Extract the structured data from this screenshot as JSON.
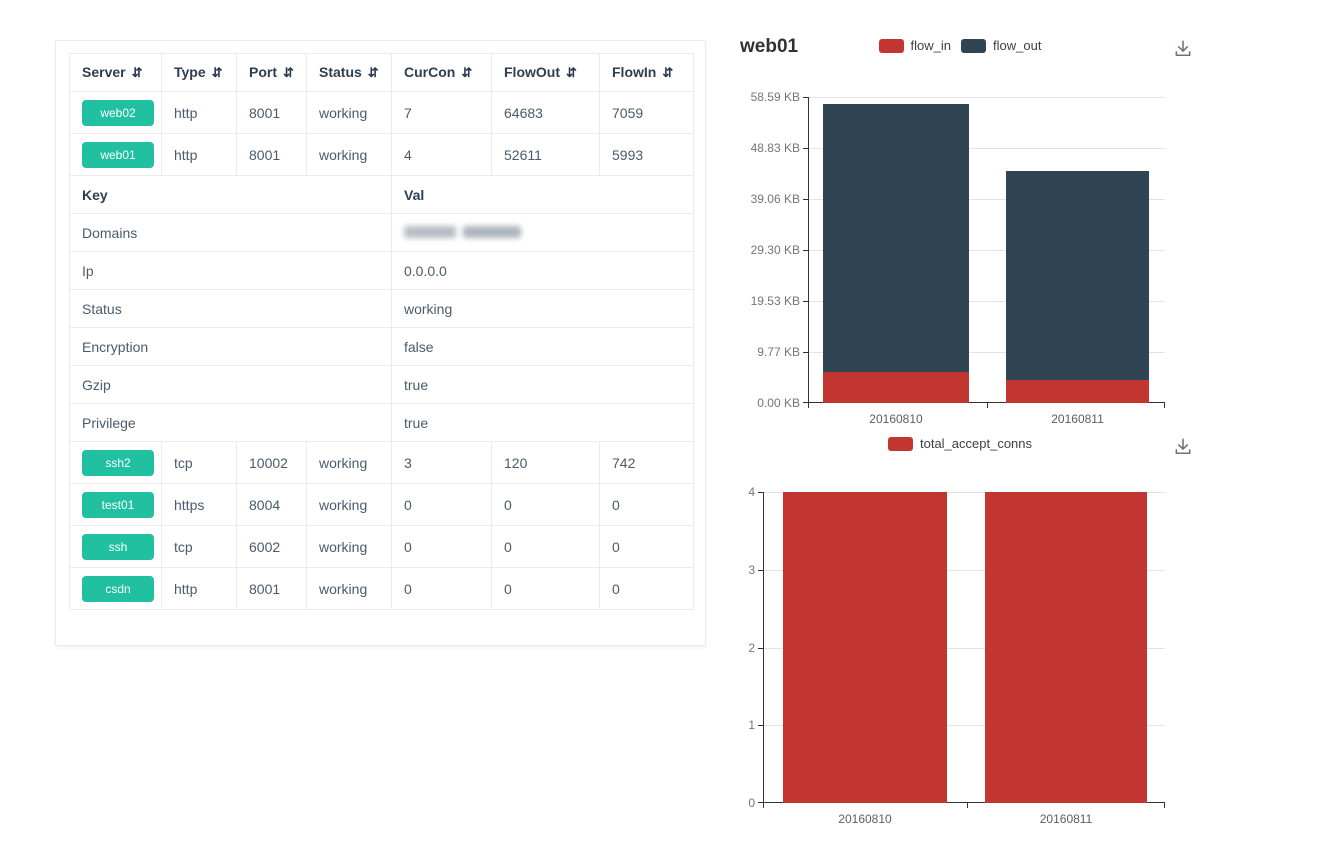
{
  "colors": {
    "badge_green": "#20c0a0",
    "bar_red": "#c23531",
    "bar_dark": "#2f4554",
    "header_text": "#2d3e50",
    "body_text": "#4a5b6c",
    "table_border": "#e9ecef",
    "grid_line": "#e0e3e8",
    "axis_line": "#333333"
  },
  "icons": {
    "sort": "⇵",
    "download": "download-icon"
  },
  "server_table": {
    "columns": [
      {
        "label": "Server",
        "sortable": true
      },
      {
        "label": "Type",
        "sortable": true
      },
      {
        "label": "Port",
        "sortable": true
      },
      {
        "label": "Status",
        "sortable": true
      },
      {
        "label": "CurCon",
        "sortable": true
      },
      {
        "label": "FlowOut",
        "sortable": true
      },
      {
        "label": "FlowIn",
        "sortable": true
      }
    ],
    "rows_top": [
      {
        "server": "web02",
        "type": "http",
        "port": "8001",
        "status": "working",
        "curcon": "7",
        "flowout": "64683",
        "flowin": "7059"
      },
      {
        "server": "web01",
        "type": "http",
        "port": "8001",
        "status": "working",
        "curcon": "4",
        "flowout": "52611",
        "flowin": "5993"
      }
    ],
    "kv": {
      "key_header": "Key",
      "val_header": "Val",
      "rows": [
        {
          "key": "Domains",
          "value": "",
          "redacted": true
        },
        {
          "key": "Ip",
          "value": "0.0.0.0",
          "redacted": false
        },
        {
          "key": "Status",
          "value": "working",
          "redacted": false
        },
        {
          "key": "Encryption",
          "value": "false",
          "redacted": false
        },
        {
          "key": "Gzip",
          "value": "true",
          "redacted": false
        },
        {
          "key": "Privilege",
          "value": "true",
          "redacted": false
        }
      ]
    },
    "rows_bottom": [
      {
        "server": "ssh2",
        "type": "tcp",
        "port": "10002",
        "status": "working",
        "curcon": "3",
        "flowout": "120",
        "flowin": "742"
      },
      {
        "server": "test01",
        "type": "https",
        "port": "8004",
        "status": "working",
        "curcon": "0",
        "flowout": "0",
        "flowin": "0"
      },
      {
        "server": "ssh",
        "type": "tcp",
        "port": "6002",
        "status": "working",
        "curcon": "0",
        "flowout": "0",
        "flowin": "0"
      },
      {
        "server": "csdn",
        "type": "http",
        "port": "8001",
        "status": "working",
        "curcon": "0",
        "flowout": "0",
        "flowin": "0"
      }
    ]
  },
  "chart_data": [
    {
      "type": "bar",
      "stacked": true,
      "title": "web01",
      "categories": [
        "20160810",
        "20160811"
      ],
      "series": [
        {
          "name": "flow_in",
          "color": "#c23531",
          "values": [
            5993,
            4600
          ]
        },
        {
          "name": "flow_out",
          "color": "#2f4554",
          "values": [
            52611,
            40900
          ]
        }
      ],
      "value_unit": "bytes",
      "ylim": [
        0,
        60000
      ],
      "y_ticks": [
        "58.59 KB",
        "48.83 KB",
        "39.06 KB",
        "29.30 KB",
        "19.53 KB",
        "9.77 KB",
        "0.00 KB"
      ],
      "xlabel": "",
      "ylabel": "",
      "grid": true,
      "legend_position": "top",
      "has_download_button": true
    },
    {
      "type": "bar",
      "stacked": false,
      "title": "",
      "categories": [
        "20160810",
        "20160811"
      ],
      "series": [
        {
          "name": "total_accept_conns",
          "color": "#c23531",
          "values": [
            4,
            4
          ]
        }
      ],
      "ylim": [
        0,
        4
      ],
      "y_ticks": [
        "4",
        "3",
        "2",
        "1",
        "0"
      ],
      "xlabel": "",
      "ylabel": "",
      "grid": true,
      "legend_position": "top",
      "has_download_button": true
    }
  ]
}
